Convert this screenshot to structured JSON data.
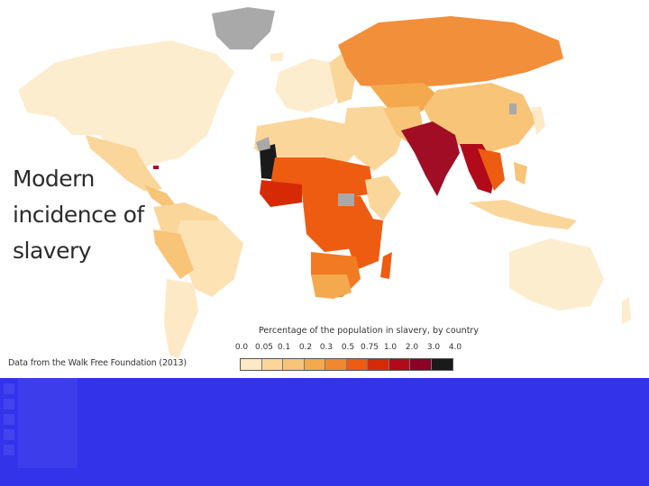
{
  "title_lines": [
    "Modern",
    "incidence of",
    "slavery"
  ],
  "source": "Data from the Walk Free Foundation (2013)",
  "legend": {
    "title": "Percentage of the population in slavery, by country",
    "ticks": [
      "0.0",
      "0.05",
      "0.1",
      "0.2",
      "0.3",
      "0.5",
      "0.75",
      "1.0",
      "2.0",
      "3.0",
      "4.0"
    ],
    "colors": [
      "#fde9c6",
      "#fbd69a",
      "#f8c477",
      "#f5a94e",
      "#f2882e",
      "#ee5c12",
      "#d62a07",
      "#b10a1a",
      "#8c0028",
      "#1a1a1a"
    ]
  },
  "map_colors": {
    "no_data": "#a9a9a9",
    "ocean": "#ffffff"
  }
}
